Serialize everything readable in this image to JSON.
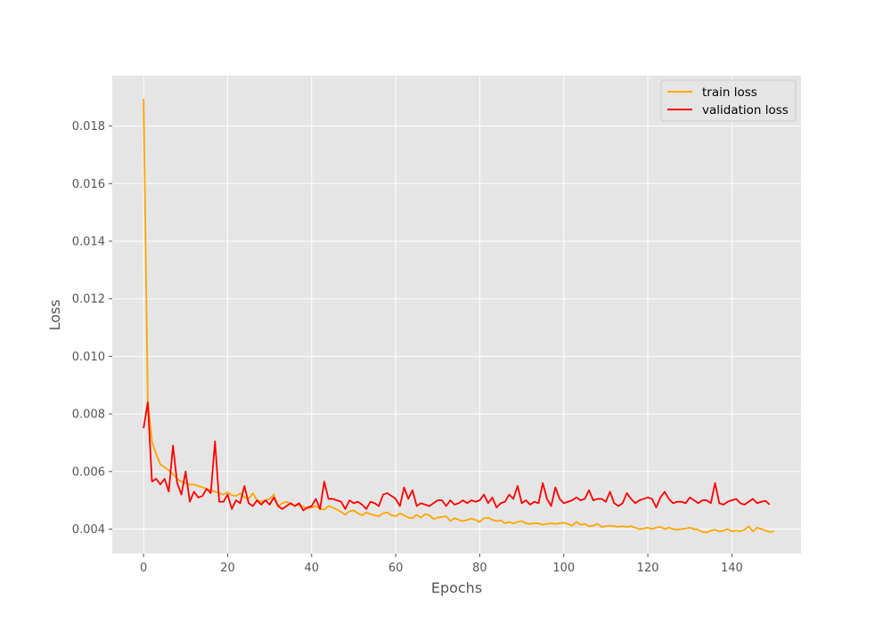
{
  "chart_data": {
    "type": "line",
    "title": "",
    "xlabel": "Epochs",
    "ylabel": "Loss",
    "xlim": [
      -7.45,
      156.45
    ],
    "ylim": [
      0.00315,
      0.01975
    ],
    "grid": true,
    "legend_position": "top-right",
    "xticks": [
      0,
      20,
      40,
      60,
      80,
      100,
      120,
      140
    ],
    "xtick_labels": [
      "0",
      "20",
      "40",
      "60",
      "80",
      "100",
      "120",
      "140"
    ],
    "yticks": [
      0.004,
      0.006,
      0.008,
      0.01,
      0.012,
      0.014,
      0.016,
      0.018
    ],
    "ytick_labels": [
      "0.004",
      "0.006",
      "0.008",
      "0.010",
      "0.012",
      "0.014",
      "0.016",
      "0.018"
    ],
    "series": [
      {
        "name": "train loss",
        "color": "#ffa500",
        "values": [
          0.01895,
          0.0085,
          0.00705,
          0.0066,
          0.00625,
          0.00615,
          0.00605,
          0.0059,
          0.00575,
          0.00565,
          0.0056,
          0.00555,
          0.00555,
          0.0055,
          0.00545,
          0.0054,
          0.00535,
          0.0053,
          0.00525,
          0.0052,
          0.00528,
          0.00518,
          0.00515,
          0.00525,
          0.0051,
          0.00505,
          0.00525,
          0.005,
          0.00495,
          0.005,
          0.00505,
          0.0052,
          0.0048,
          0.0049,
          0.00495,
          0.00488,
          0.0048,
          0.00485,
          0.00478,
          0.00472,
          0.00475,
          0.0048,
          0.0047,
          0.00468,
          0.0048,
          0.00475,
          0.00468,
          0.0046,
          0.0045,
          0.00462,
          0.00465,
          0.00455,
          0.00448,
          0.00458,
          0.00452,
          0.00448,
          0.00445,
          0.00455,
          0.00458,
          0.00448,
          0.00445,
          0.00455,
          0.00448,
          0.0044,
          0.00438,
          0.0045,
          0.0044,
          0.00452,
          0.00448,
          0.00435,
          0.0044,
          0.00442,
          0.00445,
          0.00428,
          0.00438,
          0.00432,
          0.00428,
          0.00432,
          0.00436,
          0.00432,
          0.00425,
          0.00438,
          0.0044,
          0.00432,
          0.00428,
          0.0043,
          0.0042,
          0.00425,
          0.0042,
          0.00425,
          0.00428,
          0.0042,
          0.00418,
          0.0042,
          0.0042,
          0.00415,
          0.00418,
          0.0042,
          0.00418,
          0.0042,
          0.00422,
          0.00418,
          0.00412,
          0.00425,
          0.00415,
          0.00418,
          0.0041,
          0.00412,
          0.00418,
          0.00408,
          0.0041,
          0.00412,
          0.0041,
          0.00408,
          0.0041,
          0.00408,
          0.0041,
          0.00405,
          0.004,
          0.00402,
          0.00405,
          0.004,
          0.00405,
          0.00408,
          0.004,
          0.00405,
          0.004,
          0.00398,
          0.004,
          0.00402,
          0.00405,
          0.004,
          0.00398,
          0.0039,
          0.00388,
          0.00395,
          0.00398,
          0.00392,
          0.00395,
          0.004,
          0.00392,
          0.00395,
          0.00392,
          0.00398,
          0.0041,
          0.00392,
          0.00405,
          0.004,
          0.00395,
          0.0039,
          0.00392
        ]
      },
      {
        "name": "validation loss",
        "color": "#ff0000",
        "values": [
          0.0075,
          0.0084,
          0.00565,
          0.00575,
          0.00555,
          0.00575,
          0.0053,
          0.0069,
          0.0056,
          0.0052,
          0.006,
          0.00495,
          0.0053,
          0.0051,
          0.00515,
          0.0054,
          0.00525,
          0.00705,
          0.00495,
          0.00495,
          0.0052,
          0.0047,
          0.005,
          0.0049,
          0.0055,
          0.0049,
          0.0048,
          0.005,
          0.00485,
          0.005,
          0.00485,
          0.0051,
          0.0048,
          0.0047,
          0.0048,
          0.0049,
          0.0048,
          0.0049,
          0.00465,
          0.00475,
          0.0048,
          0.00505,
          0.0047,
          0.00565,
          0.00505,
          0.00505,
          0.005,
          0.00495,
          0.0047,
          0.005,
          0.0049,
          0.00495,
          0.00485,
          0.0047,
          0.00495,
          0.0049,
          0.0048,
          0.0052,
          0.00525,
          0.00515,
          0.00505,
          0.0048,
          0.00545,
          0.00505,
          0.00535,
          0.0048,
          0.0049,
          0.00485,
          0.0048,
          0.0049,
          0.005,
          0.005,
          0.0048,
          0.005,
          0.00485,
          0.0049,
          0.005,
          0.0049,
          0.005,
          0.00495,
          0.005,
          0.0052,
          0.0049,
          0.0051,
          0.00475,
          0.0049,
          0.00495,
          0.0052,
          0.00505,
          0.0055,
          0.0049,
          0.005,
          0.00485,
          0.00495,
          0.0049,
          0.0056,
          0.00505,
          0.0048,
          0.00545,
          0.00505,
          0.0049,
          0.00495,
          0.005,
          0.0051,
          0.005,
          0.00505,
          0.00535,
          0.005,
          0.00505,
          0.00505,
          0.00495,
          0.0053,
          0.0049,
          0.0048,
          0.0049,
          0.00525,
          0.00505,
          0.0049,
          0.005,
          0.00505,
          0.0051,
          0.00505,
          0.00475,
          0.0051,
          0.0053,
          0.00505,
          0.0049,
          0.00495,
          0.00495,
          0.0049,
          0.0051,
          0.005,
          0.0049,
          0.005,
          0.005,
          0.0049,
          0.0056,
          0.0049,
          0.00485,
          0.00495,
          0.005,
          0.00505,
          0.0049,
          0.00485,
          0.00495,
          0.00505,
          0.0049,
          0.00495,
          0.00498,
          0.00485
        ]
      }
    ]
  }
}
